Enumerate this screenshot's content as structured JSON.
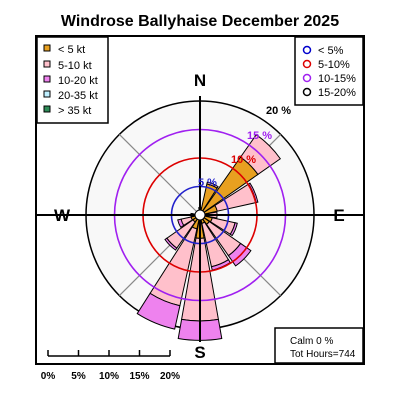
{
  "title": "Windrose  Ballyhaise December 2025",
  "directions": {
    "n": "N",
    "e": "E",
    "s": "S",
    "w": "W"
  },
  "speed_legend": [
    {
      "label": "< 5  kt",
      "color": "#e8a020"
    },
    {
      "label": "5-10 kt",
      "color": "#ffc0cb"
    },
    {
      "label": "10-20 kt",
      "color": "#ee82ee"
    },
    {
      "label": "20-35 kt",
      "color": "#bfefff"
    },
    {
      "label": "> 35 kt",
      "color": "#2e8b57"
    }
  ],
  "ring_legend": [
    {
      "label": "< 5%",
      "color": "#0000cc"
    },
    {
      "label": "5-10%",
      "color": "#dd0000"
    },
    {
      "label": "10-15%",
      "color": "#a020f0"
    },
    {
      "label": "15-20%",
      "color": "#000000"
    }
  ],
  "info": {
    "calm": "Calm 0 %",
    "hours": "Tot Hours=744"
  },
  "chart_data": {
    "type": "rose",
    "title": "Windrose  Ballyhaise December 2025",
    "speed_bins": [
      "< 5  kt",
      "5-10 kt",
      "10-20 kt",
      "20-35 kt",
      "> 35 kt"
    ],
    "ring_labels": [
      "5 %",
      "10 %",
      "15 %",
      "20 %"
    ],
    "ring_values": [
      5,
      10,
      15,
      20
    ],
    "scale_labels": [
      "0%",
      "5%",
      "10%",
      "15%",
      "20%"
    ],
    "rmax": 20,
    "sectors": [
      {
        "dir": "N",
        "values": [
          1.3,
          0,
          0,
          0,
          0
        ]
      },
      {
        "dir": "NNE",
        "values": [
          5.6,
          0.3,
          0,
          0,
          0
        ]
      },
      {
        "dir": "NE",
        "values": [
          12.4,
          4.8,
          0,
          0,
          0
        ]
      },
      {
        "dir": "ENE",
        "values": [
          3.1,
          7.0,
          0.3,
          0,
          0
        ]
      },
      {
        "dir": "E",
        "values": [
          1.6,
          1.4,
          0,
          0,
          0
        ]
      },
      {
        "dir": "ESE",
        "values": [
          2.2,
          4.1,
          0.4,
          0,
          0
        ]
      },
      {
        "dir": "SE",
        "values": [
          2.0,
          6.7,
          2.2,
          0,
          0
        ]
      },
      {
        "dir": "SSE",
        "values": [
          1.5,
          7.8,
          0.6,
          0,
          0
        ]
      },
      {
        "dir": "S",
        "values": [
          4.1,
          14.5,
          3.4,
          0,
          0
        ]
      },
      {
        "dir": "SSW",
        "values": [
          2.5,
          13.8,
          4.2,
          0,
          0
        ]
      },
      {
        "dir": "SW",
        "values": [
          1.5,
          5.6,
          0.4,
          0,
          0
        ]
      },
      {
        "dir": "WSW",
        "values": [
          1.6,
          1.8,
          0.6,
          0,
          0
        ]
      },
      {
        "dir": "W",
        "values": [
          1.4,
          0.2,
          0,
          0,
          0
        ]
      },
      {
        "dir": "WNW",
        "values": [
          0.3,
          0,
          0,
          0,
          0
        ]
      },
      {
        "dir": "NW",
        "values": [
          0.2,
          0,
          0,
          0,
          0
        ]
      },
      {
        "dir": "NNW",
        "values": [
          0.2,
          0,
          0,
          0,
          0
        ]
      }
    ]
  }
}
